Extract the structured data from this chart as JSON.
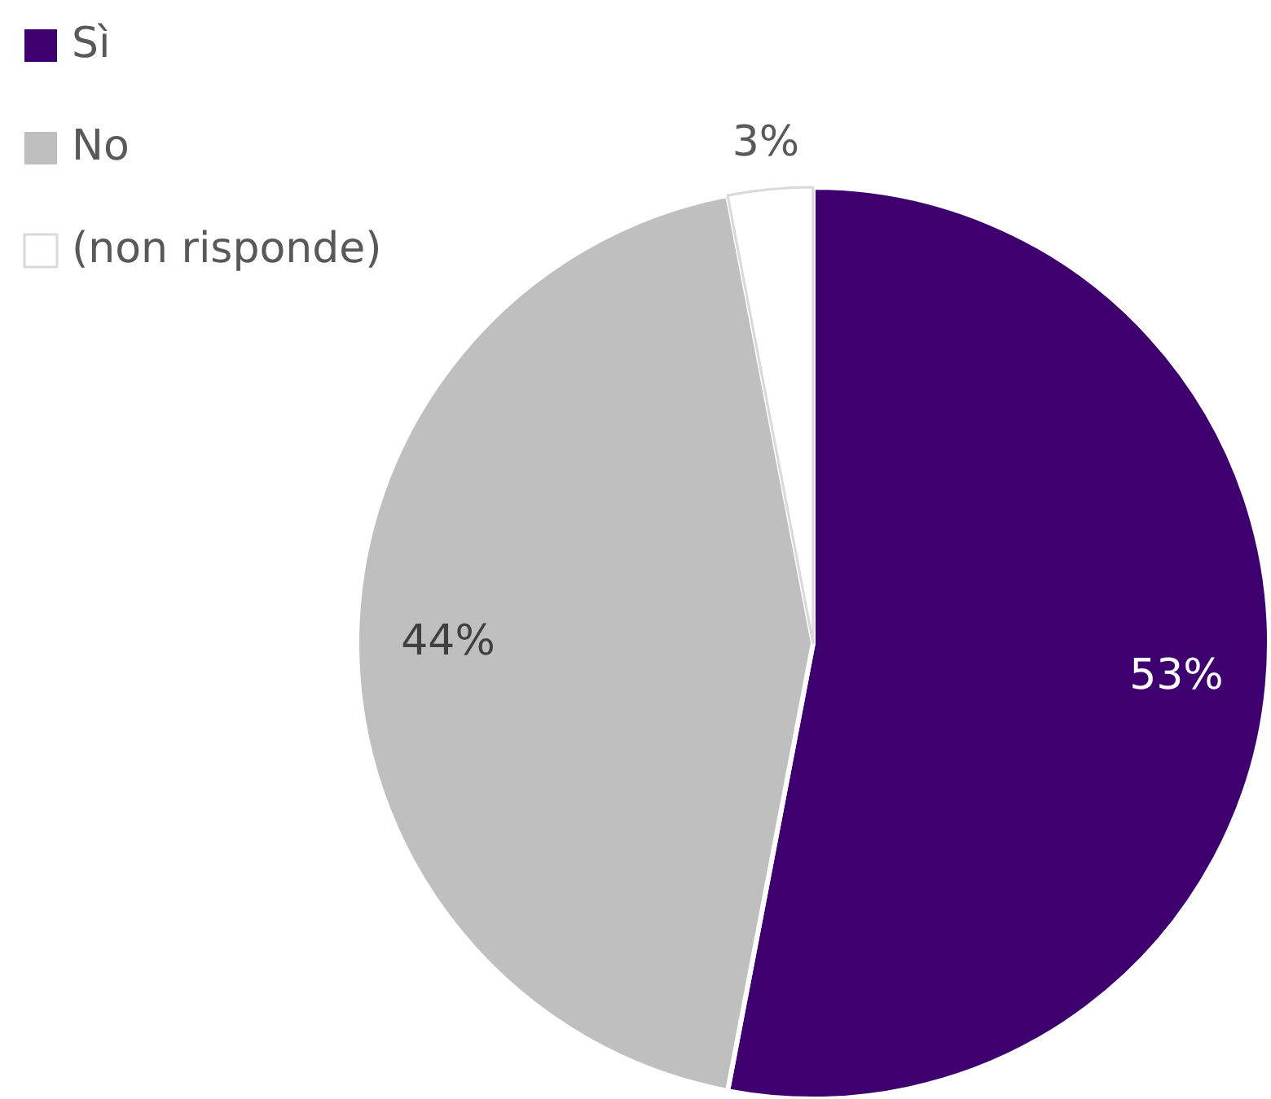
{
  "chart_data": {
    "type": "pie",
    "categories": [
      "Sì",
      "No",
      "(non risponde)"
    ],
    "values": [
      53,
      44,
      3
    ],
    "colors": [
      "#3d006e",
      "#bfbfbf",
      "#ffffff"
    ],
    "value_labels": [
      "53%",
      "44%",
      "3%"
    ],
    "legend": "top left"
  }
}
